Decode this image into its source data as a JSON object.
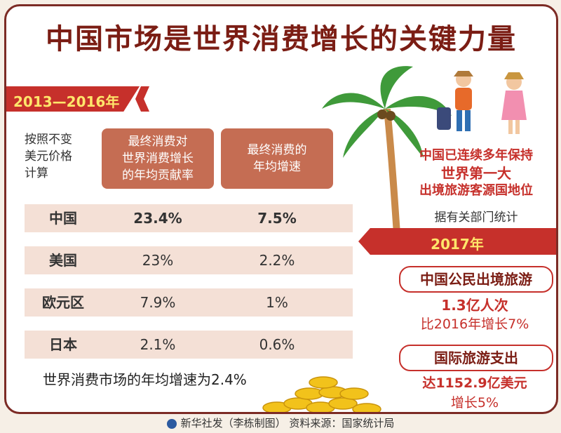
{
  "title": "中国市场是世界消费增长的关键力量",
  "left": {
    "period": "2013—2016年",
    "note": [
      "按照不变",
      "美元价格",
      "计算"
    ],
    "col1": [
      "最终消费对",
      "世界消费增长",
      "的年均贡献率"
    ],
    "col2": [
      "最终消费的",
      "年均增速"
    ],
    "rows": [
      {
        "name": "中国",
        "v1": "23.4%",
        "v2": "7.5%"
      },
      {
        "name": "美国",
        "v1": "23%",
        "v2": "2.2%"
      },
      {
        "name": "欧元区",
        "v1": "7.9%",
        "v2": "1%"
      },
      {
        "name": "日本",
        "v1": "2.1%",
        "v2": "0.6%"
      }
    ],
    "summary": "世界消费市场的年均增速为2.4%"
  },
  "right": {
    "lines": [
      "中国已连续多年保持",
      "世界第一大",
      "出境旅游客源国地位"
    ],
    "source_note": "据有关部门统计",
    "year": "2017年",
    "box1": "中国公民出境旅游",
    "stat1": "1.3亿人次",
    "stat2": "比2016年增长7%",
    "box2": "国际旅游支出",
    "stat3": "达1152.9亿美元",
    "stat4": "增长5%"
  },
  "footer": "新华社发（李栋制图） 资料来源：国家统计局",
  "colors": {
    "accent": "#c6302b",
    "title": "#7b1d14",
    "header": "#c56d53",
    "row": "#f4e0d6"
  }
}
